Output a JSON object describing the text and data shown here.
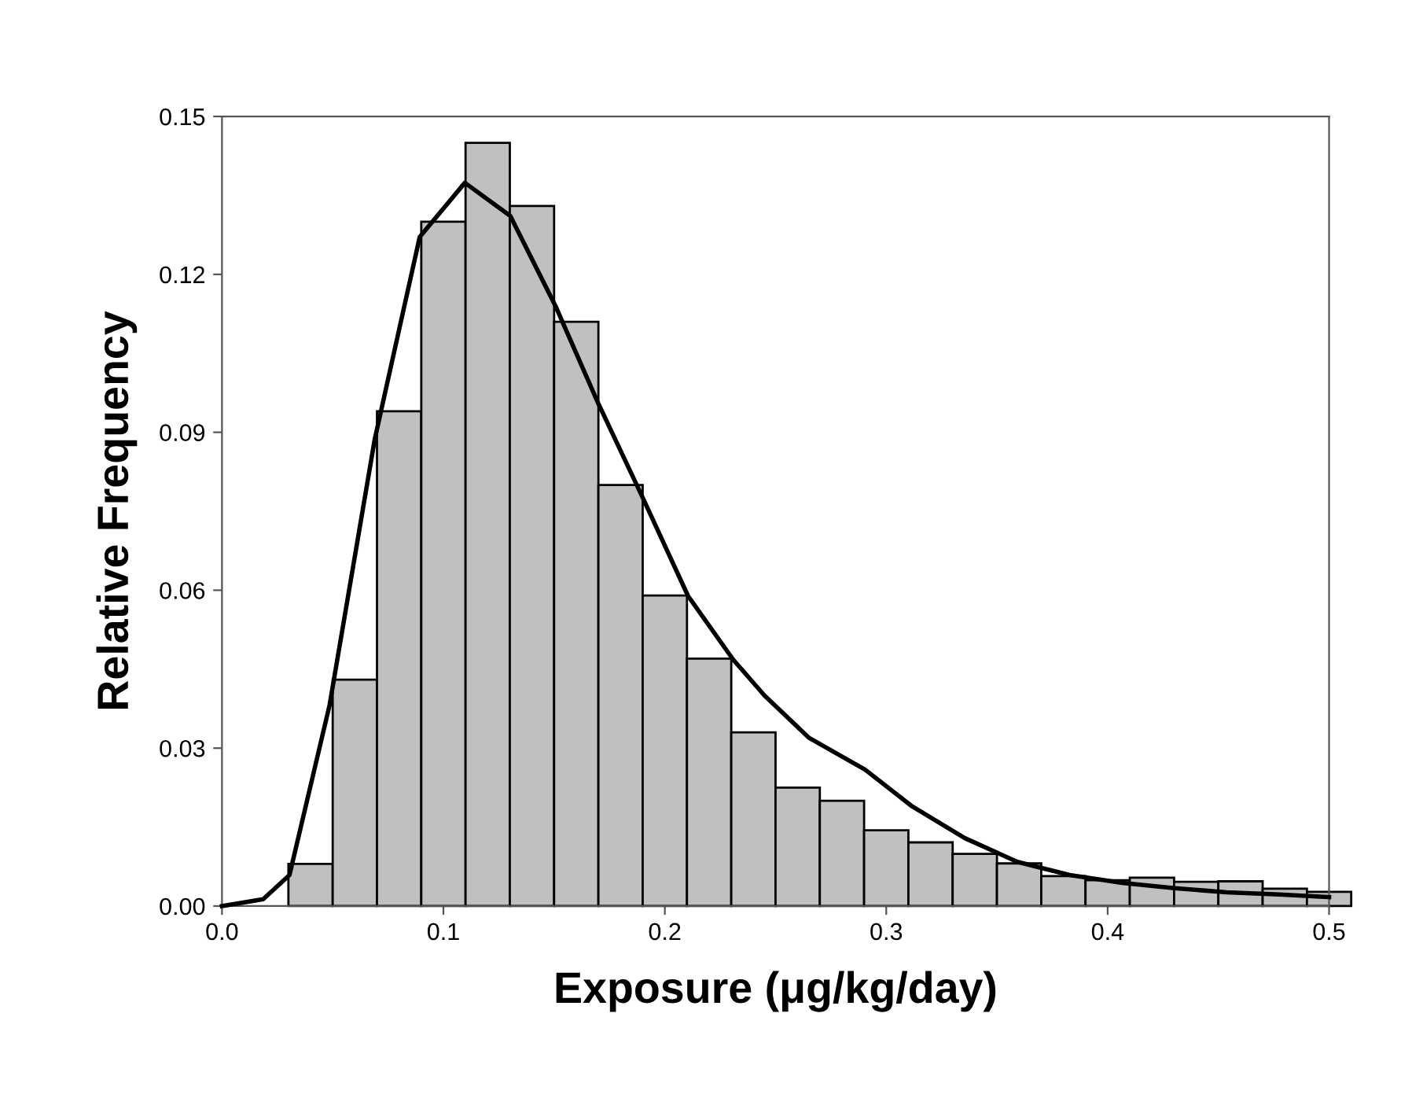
{
  "chart_data": {
    "type": "histogram",
    "xlabel": "Exposure (μg/kg/day)",
    "ylabel": "Relative Frequency",
    "bins": [
      0.03,
      0.05,
      0.07,
      0.09,
      0.11,
      0.13,
      0.15,
      0.17,
      0.19,
      0.21,
      0.23,
      0.25,
      0.27,
      0.29,
      0.31,
      0.33,
      0.35,
      0.37,
      0.39,
      0.41,
      0.43,
      0.45,
      0.47,
      0.49,
      0.51
    ],
    "values": [
      0.008,
      0.043,
      0.094,
      0.13,
      0.145,
      0.133,
      0.111,
      0.08,
      0.059,
      0.047,
      0.033,
      0.0225,
      0.02,
      0.0144,
      0.0121,
      0.0099,
      0.0081,
      0.0057,
      0.0049,
      0.0054,
      0.0046,
      0.0047,
      0.0033,
      0.0027
    ],
    "color": "#c0c0c0",
    "series": [
      {
        "type": "line",
        "color": "#000000",
        "x": [
          0.0,
          0.0186,
          0.0305,
          0.0486,
          0.069,
          0.0893,
          0.1097,
          0.1302,
          0.1506,
          0.1697,
          0.19,
          0.2105,
          0.2309,
          0.245,
          0.265,
          0.2905,
          0.3118,
          0.3355,
          0.3592,
          0.3828,
          0.4065,
          0.4302,
          0.4538,
          0.4775,
          0.5
        ],
        "values": [
          0.0,
          0.0013,
          0.0059,
          0.0382,
          0.0887,
          0.1271,
          0.1374,
          0.1311,
          0.114,
          0.0957,
          0.0776,
          0.0589,
          0.0468,
          0.04,
          0.032,
          0.0259,
          0.0189,
          0.0129,
          0.0084,
          0.0059,
          0.0044,
          0.0034,
          0.0026,
          0.0022,
          0.0017
        ]
      }
    ],
    "xlim": [
      0,
      0.5
    ],
    "ylim": [
      0,
      0.15
    ],
    "xticks": [
      {
        "value": 0,
        "label": "0.0"
      },
      0.1,
      0.2,
      0.3,
      0.4,
      0.5
    ],
    "yticks": [
      {
        "value": 0,
        "label": "0.00"
      },
      0.03,
      0.06,
      0.09,
      0.12,
      0.15
    ],
    "grid": false,
    "legend": false
  }
}
